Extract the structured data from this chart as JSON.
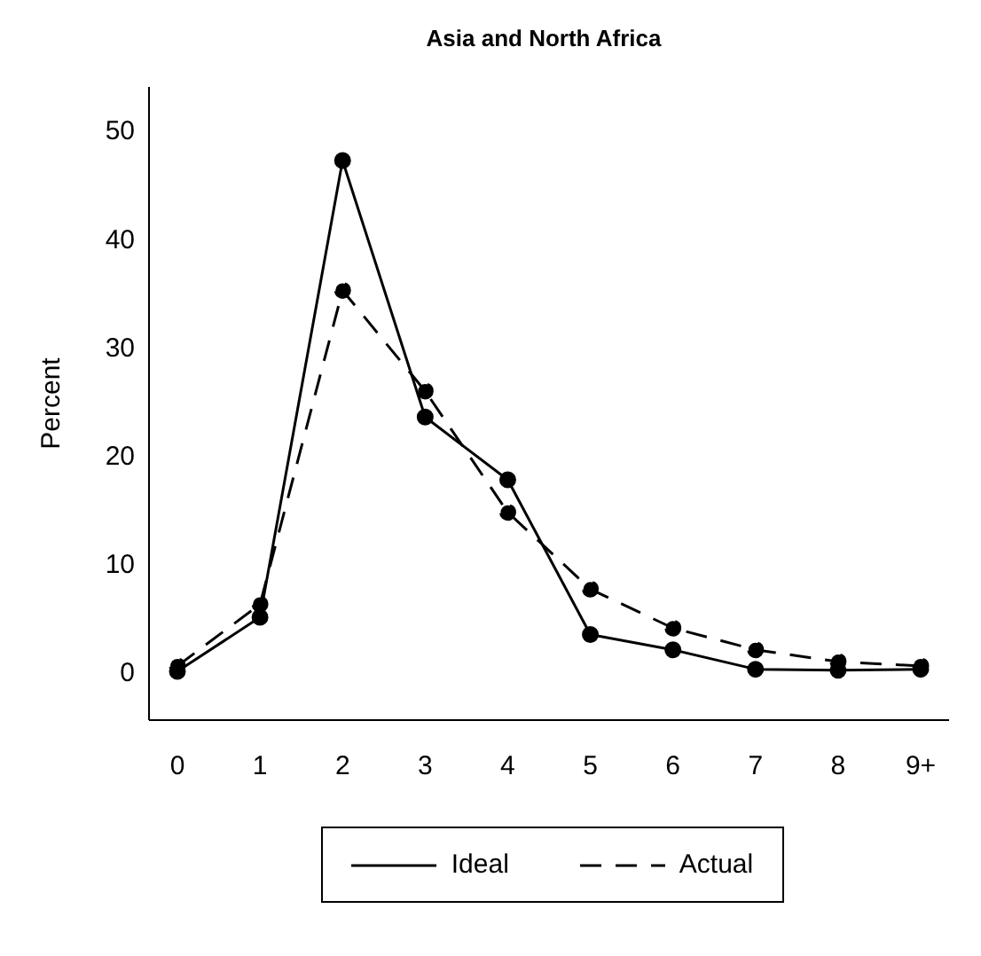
{
  "chart_data": {
    "type": "line",
    "title": "Asia and North Africa",
    "ylabel": "Percent",
    "categories": [
      "0",
      "1",
      "2",
      "3",
      "4",
      "5",
      "6",
      "7",
      "8",
      "9+"
    ],
    "series": [
      {
        "name": "Ideal",
        "color": "#000000",
        "line_style": "solid",
        "values": [
          0,
          5,
          47.2,
          23.5,
          17.7,
          3.4,
          2,
          0.2,
          0.1,
          0.2
        ]
      },
      {
        "name": "Actual",
        "color": "#000000",
        "line_style": "dashed",
        "values": [
          0.5,
          6.2,
          35.2,
          25.9,
          14.7,
          7.6,
          4,
          2,
          0.9,
          0.5
        ]
      }
    ],
    "ylim": [
      -4.5,
      54
    ],
    "yticks": [
      0,
      10,
      20,
      30,
      40,
      50
    ],
    "marker": "circle",
    "legend": "bottom",
    "grid": false
  }
}
